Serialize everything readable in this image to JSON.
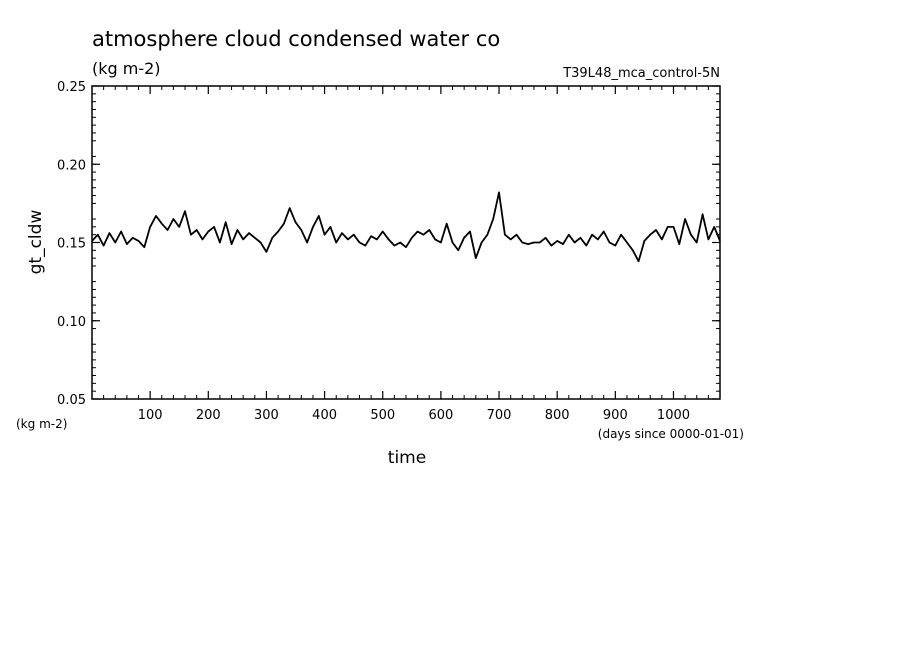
{
  "chart_data": {
    "type": "line",
    "title": "atmosphere cloud condensed water co",
    "subtitle": "(kg m-2)",
    "run_label": "T39L48_mca_control-5N",
    "xlabel": "time",
    "x_units": "(days since 0000-01-01)",
    "ylabel": "gt_cldw",
    "y_units": "(kg m-2)",
    "xlim": [
      0,
      1080
    ],
    "ylim": [
      0.05,
      0.25
    ],
    "x_ticks": [
      100,
      200,
      300,
      400,
      500,
      600,
      700,
      800,
      900,
      1000
    ],
    "y_ticks": [
      "0.05",
      "0.10",
      "0.15",
      "0.20",
      "0.25"
    ],
    "line_color": "#000000",
    "series": [
      {
        "x": [
          0,
          10,
          20,
          30,
          40,
          50,
          60,
          70,
          80,
          90,
          100,
          110,
          120,
          130,
          140,
          150,
          160,
          170,
          180,
          190,
          200,
          210,
          220,
          230,
          240,
          250,
          260,
          270,
          280,
          290,
          300,
          310,
          320,
          330,
          340,
          350,
          360,
          370,
          380,
          390,
          400,
          410,
          420,
          430,
          440,
          450,
          460,
          470,
          480,
          490,
          500,
          510,
          520,
          530,
          540,
          550,
          560,
          570,
          580,
          590,
          600,
          610,
          620,
          630,
          640,
          650,
          660,
          670,
          680,
          690,
          700,
          710,
          720,
          730,
          740,
          750,
          760,
          770,
          780,
          790,
          800,
          810,
          820,
          830,
          840,
          850,
          860,
          870,
          880,
          890,
          900,
          910,
          920,
          930,
          940,
          950,
          960,
          970,
          980,
          990,
          1000,
          1010,
          1020,
          1030,
          1040,
          1050,
          1060,
          1070,
          1080
        ],
        "y": [
          0.151,
          0.155,
          0.148,
          0.156,
          0.15,
          0.157,
          0.149,
          0.153,
          0.151,
          0.147,
          0.16,
          0.167,
          0.162,
          0.158,
          0.165,
          0.16,
          0.17,
          0.155,
          0.158,
          0.152,
          0.157,
          0.16,
          0.15,
          0.163,
          0.149,
          0.158,
          0.152,
          0.156,
          0.153,
          0.15,
          0.144,
          0.153,
          0.157,
          0.162,
          0.172,
          0.163,
          0.158,
          0.15,
          0.16,
          0.167,
          0.155,
          0.16,
          0.15,
          0.156,
          0.152,
          0.155,
          0.15,
          0.148,
          0.154,
          0.152,
          0.157,
          0.152,
          0.148,
          0.15,
          0.147,
          0.153,
          0.157,
          0.155,
          0.158,
          0.152,
          0.15,
          0.162,
          0.15,
          0.145,
          0.153,
          0.157,
          0.14,
          0.15,
          0.155,
          0.165,
          0.182,
          0.155,
          0.152,
          0.155,
          0.15,
          0.149,
          0.15,
          0.15,
          0.153,
          0.148,
          0.151,
          0.149,
          0.155,
          0.15,
          0.153,
          0.148,
          0.155,
          0.152,
          0.157,
          0.15,
          0.148,
          0.155,
          0.15,
          0.145,
          0.138,
          0.151,
          0.155,
          0.158,
          0.152,
          0.16,
          0.16,
          0.149,
          0.165,
          0.155,
          0.15,
          0.168,
          0.152,
          0.16,
          0.151
        ]
      }
    ]
  }
}
